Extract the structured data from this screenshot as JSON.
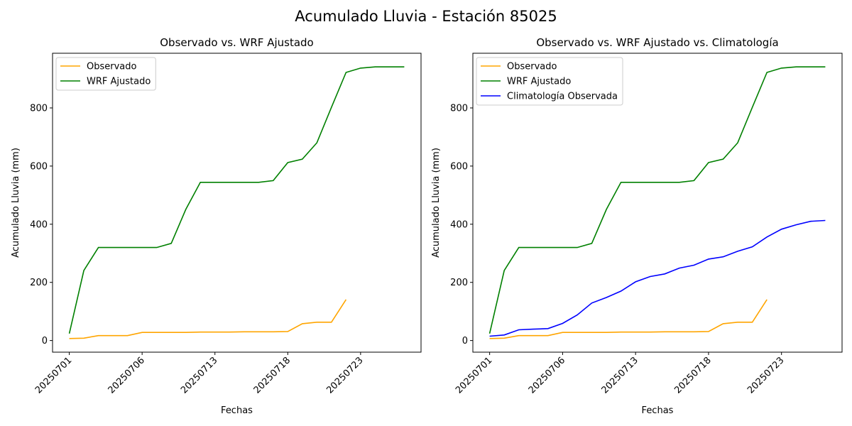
{
  "title": "Acumulado Lluvia - Estación 85025",
  "chart_data": [
    {
      "type": "line",
      "title": "Observado vs. WRF Ajustado",
      "xlabel": "Fechas",
      "ylabel": "Acumulado Lluvia (mm)",
      "categories": [
        "20250701",
        null,
        null,
        null,
        null,
        "20250706",
        null,
        null,
        null,
        null,
        "20250713",
        null,
        null,
        null,
        null,
        "20250718",
        null,
        null,
        null,
        null,
        "20250723",
        null,
        null,
        null
      ],
      "series": [
        {
          "name": "Observado",
          "color": "orange",
          "values": [
            7,
            8,
            17,
            17,
            17,
            28,
            28,
            28,
            28,
            29,
            29,
            29,
            30,
            30,
            30,
            31,
            58,
            63,
            63,
            141,
            null,
            null,
            null,
            null
          ]
        },
        {
          "name": "WRF Ajustado",
          "color": "green",
          "values": [
            24,
            241,
            320,
            320,
            320,
            320,
            320,
            334,
            451,
            544,
            544,
            544,
            544,
            544,
            550,
            612,
            624,
            680,
            802,
            922,
            937,
            941,
            941,
            941
          ]
        }
      ],
      "ylim": [
        -40,
        988
      ],
      "yticks": [
        0,
        200,
        400,
        600,
        800
      ],
      "legend": "upper left"
    },
    {
      "type": "line",
      "title": "Observado vs. WRF Ajustado vs. Climatología",
      "xlabel": "Fechas",
      "ylabel": "Acumulado Lluvia (mm)",
      "categories": [
        "20250701",
        null,
        null,
        null,
        null,
        "20250706",
        null,
        null,
        null,
        null,
        "20250713",
        null,
        null,
        null,
        null,
        "20250718",
        null,
        null,
        null,
        null,
        "20250723",
        null,
        null,
        null
      ],
      "series": [
        {
          "name": "Observado",
          "color": "orange",
          "values": [
            7,
            8,
            17,
            17,
            17,
            28,
            28,
            28,
            28,
            29,
            29,
            29,
            30,
            30,
            30,
            31,
            58,
            63,
            63,
            141,
            null,
            null,
            null,
            null
          ]
        },
        {
          "name": "WRF Ajustado",
          "color": "green",
          "values": [
            24,
            241,
            320,
            320,
            320,
            320,
            320,
            334,
            451,
            544,
            544,
            544,
            544,
            544,
            550,
            612,
            624,
            680,
            802,
            922,
            937,
            941,
            941,
            941
          ]
        },
        {
          "name": "Climatología Observada",
          "color": "blue",
          "values": [
            15,
            19,
            37,
            39,
            41,
            59,
            88,
            129,
            148,
            170,
            202,
            220,
            229,
            249,
            259,
            280,
            288,
            307,
            322,
            356,
            383,
            398,
            410,
            413
          ]
        }
      ],
      "ylim": [
        -40,
        988
      ],
      "yticks": [
        0,
        200,
        400,
        600,
        800
      ],
      "legend": "upper left"
    }
  ]
}
